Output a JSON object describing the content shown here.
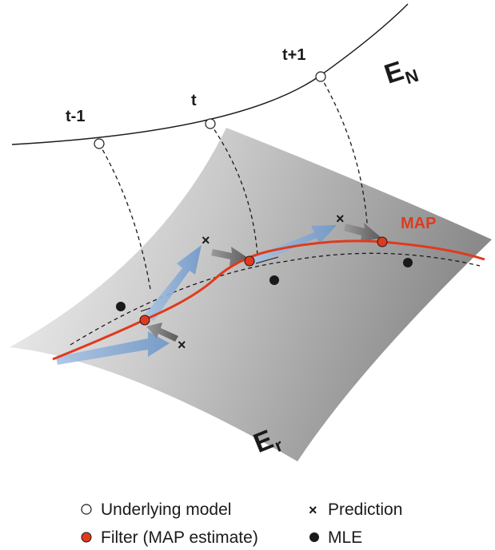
{
  "time_labels": {
    "prev": "t-1",
    "current": "t",
    "next": "t+1"
  },
  "manifold_labels": {
    "upper": {
      "main": "E",
      "sub": "N"
    },
    "lower": {
      "main": "E",
      "sub": "r"
    }
  },
  "curve_label": "MAP",
  "legend": {
    "underlying": "Underlying model",
    "prediction": "Prediction",
    "filter": "Filter (MAP estimate)",
    "mle": "MLE"
  },
  "colors": {
    "map_curve": "#e03a1e",
    "filter_point": "#e03a1e",
    "arrow_blue": "#8aaed6",
    "arrow_gray": "#7a7a7a",
    "surface_light": "#f2f2f2",
    "surface_dark": "#8c8c8c"
  }
}
